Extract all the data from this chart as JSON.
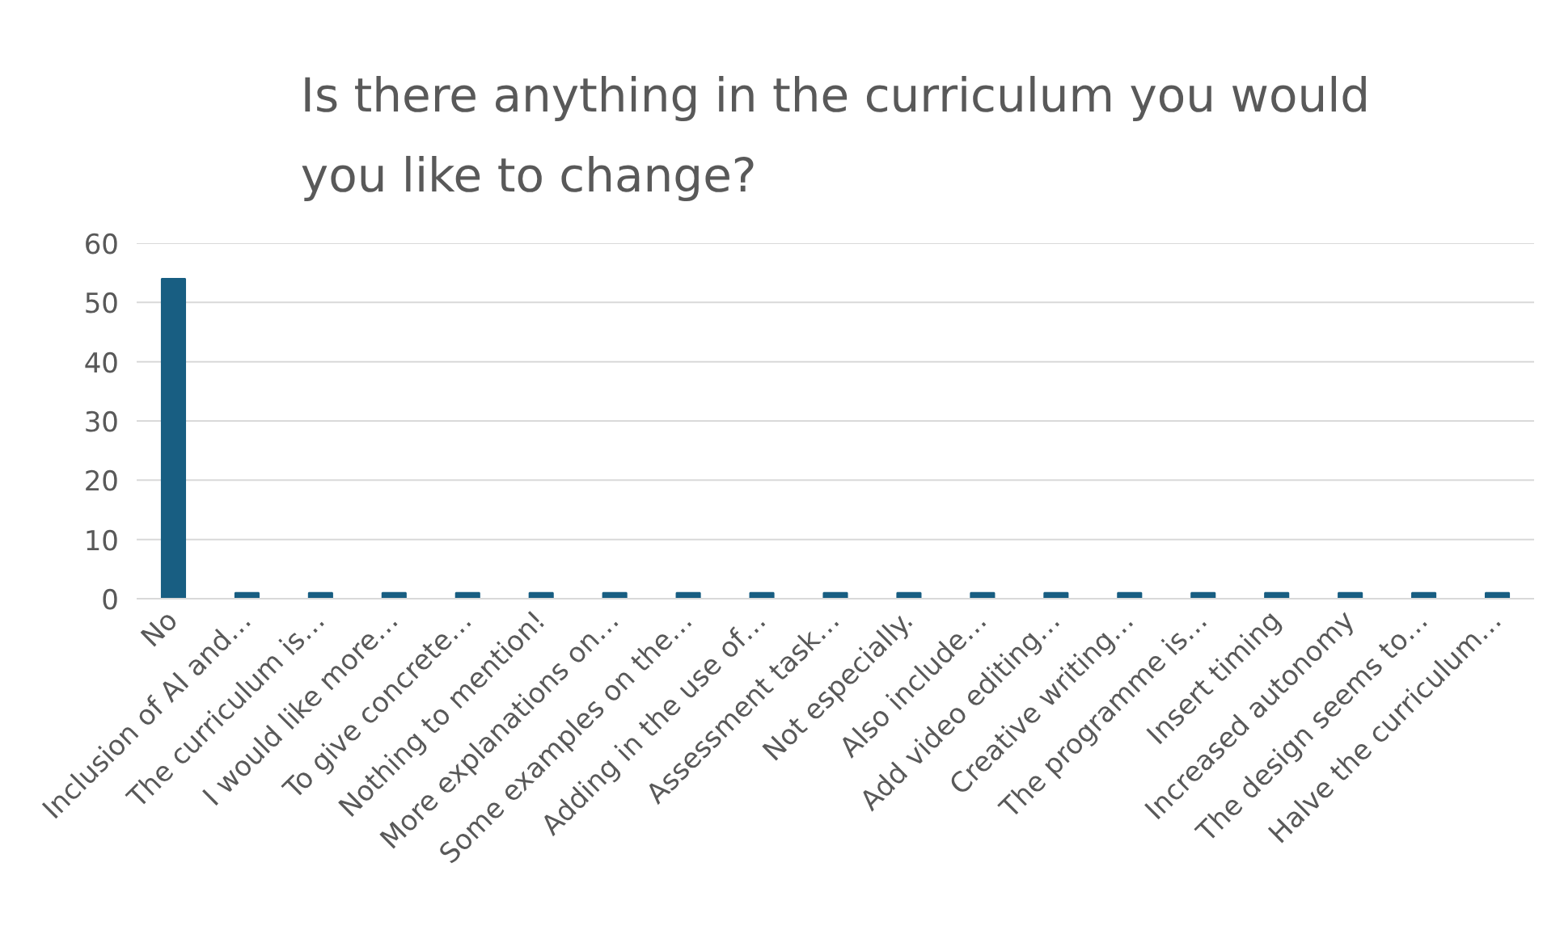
{
  "chart_data": {
    "type": "bar",
    "title": "Is there anything in the curriculum you would you like to change?",
    "categories": [
      "No",
      "Inclusion of AI and…",
      "The curriculum is…",
      "I would like more…",
      "To give concrete…",
      "Nothing to mention!",
      "More explanations on…",
      "Some examples on the…",
      "Adding in the use of…",
      "Assessment task…",
      "Not especially.",
      "Also include…",
      "Add video editing…",
      "Creative writing…",
      "The programme is…",
      "Insert timing",
      "Increased autonomy",
      "The design seems to…",
      "Halve the curriculum…"
    ],
    "values": [
      54,
      1,
      1,
      1,
      1,
      1,
      1,
      1,
      1,
      1,
      1,
      1,
      1,
      1,
      1,
      1,
      1,
      1,
      1
    ],
    "color": "#185e82",
    "ylim": [
      0,
      60
    ],
    "yticks": [
      0,
      10,
      20,
      30,
      40,
      50,
      60
    ],
    "grid": "y"
  }
}
